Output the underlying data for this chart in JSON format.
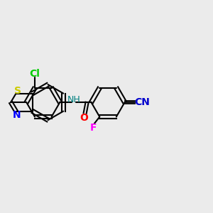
{
  "background_color": "#ebebeb",
  "bond_color": "#000000",
  "atom_colors": {
    "S": "#cccc00",
    "N": "#0000ff",
    "O": "#ff0000",
    "F": "#ff00ff",
    "Cl": "#00cc00",
    "C_label": "#000000",
    "H": "#008080",
    "CN_label": "#0000cd"
  },
  "font_size": 9,
  "fig_width": 3.0,
  "fig_height": 3.0
}
